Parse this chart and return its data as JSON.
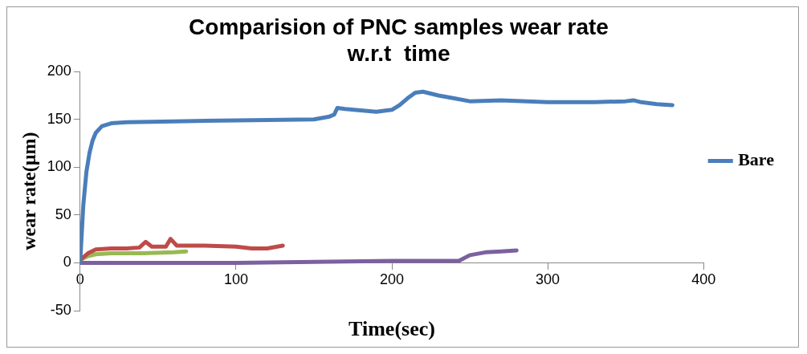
{
  "chart_data": {
    "type": "line",
    "title": [
      "Comparision of PNC samples wear rate",
      "w.r.t  time"
    ],
    "xlabel": "Time(sec)",
    "ylabel": "wear rate(µm)",
    "xlim": [
      0,
      400
    ],
    "xticks": [
      0,
      100,
      200,
      300,
      400
    ],
    "ylim": [
      -50,
      200
    ],
    "yticks": [
      -50,
      0,
      50,
      100,
      150,
      200
    ],
    "grid": false,
    "legend": "right",
    "marker": "none",
    "line_style": "solid",
    "series": [
      {
        "name": "Bare",
        "color": "#4a7ebb",
        "x": [
          0,
          2,
          4,
          6,
          8,
          10,
          14,
          20,
          30,
          60,
          100,
          150,
          160,
          163,
          165,
          170,
          190,
          200,
          205,
          210,
          215,
          220,
          230,
          240,
          250,
          270,
          300,
          330,
          350,
          355,
          360,
          370,
          380
        ],
        "values": [
          0,
          60,
          95,
          115,
          128,
          136,
          143,
          146,
          147,
          148,
          149,
          150,
          153,
          155,
          162,
          161,
          158,
          160,
          165,
          172,
          178,
          179,
          175,
          172,
          169,
          170,
          168,
          168,
          169,
          170,
          168,
          166,
          165
        ]
      },
      {
        "color": "#be4b48",
        "x": [
          0,
          5,
          10,
          20,
          30,
          38,
          42,
          46,
          50,
          55,
          58,
          62,
          70,
          80,
          100,
          110,
          120,
          130
        ],
        "values": [
          3,
          10,
          14,
          15,
          15,
          16,
          22,
          17,
          17,
          17,
          25,
          18,
          18,
          18,
          17,
          15,
          15,
          18
        ]
      },
      {
        "color": "#98b954",
        "x": [
          0,
          5,
          10,
          20,
          40,
          60,
          68
        ],
        "values": [
          3,
          7,
          9,
          10,
          10,
          11,
          12
        ]
      },
      {
        "color": "#7d60a0",
        "x": [
          0,
          50,
          100,
          150,
          200,
          230,
          243,
          250,
          260,
          270,
          280
        ],
        "values": [
          0,
          0,
          0,
          1,
          2,
          2,
          2,
          8,
          11,
          12,
          13
        ]
      }
    ]
  }
}
